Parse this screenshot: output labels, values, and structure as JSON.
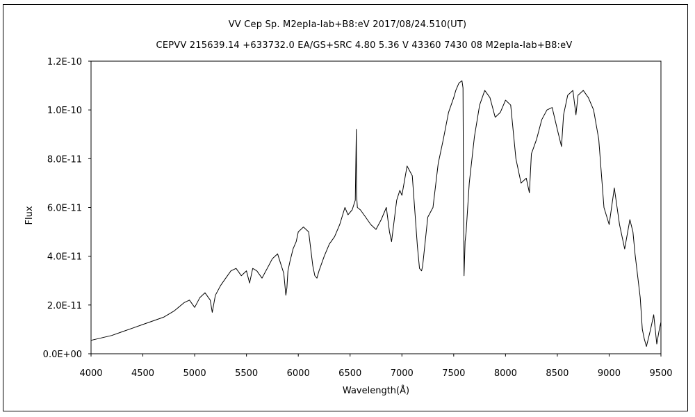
{
  "chart_data": {
    "type": "line",
    "title": "VV Cep     Sp. M2epIa-Iab+B8:eV     2017/08/24.510(UT)",
    "subtitle": "CEPVV 215639.14 +633732.0 EA/GS+SRC 4.80 5.36 V 43360 7430 08 M2epIa-Iab+B8:eV",
    "xlabel": "Wavelength(Å)",
    "ylabel": "Flux",
    "xlim": [
      4000,
      9500
    ],
    "ylim": [
      0,
      1.2e-10
    ],
    "x_ticks": [
      "4000",
      "4500",
      "5000",
      "5500",
      "6000",
      "6500",
      "7000",
      "7500",
      "8000",
      "8500",
      "9000",
      "9500"
    ],
    "y_ticks": [
      "0.0E+00",
      "2.0E-11",
      "4.0E-11",
      "6.0E-11",
      "8.0E-11",
      "1.0E-10",
      "1.2E-10"
    ],
    "grid": false,
    "series": [
      {
        "color": "#000000",
        "x": [
          4000,
          4100,
          4200,
          4300,
          4400,
          4500,
          4600,
          4700,
          4800,
          4900,
          4950,
          5000,
          5050,
          5100,
          5150,
          5170,
          5200,
          5250,
          5300,
          5350,
          5400,
          5450,
          5500,
          5530,
          5560,
          5600,
          5650,
          5700,
          5750,
          5800,
          5830,
          5860,
          5880,
          5890,
          5900,
          5920,
          5950,
          5980,
          6000,
          6050,
          6100,
          6140,
          6160,
          6180,
          6200,
          6250,
          6300,
          6350,
          6400,
          6450,
          6480,
          6520,
          6550,
          6560,
          6563,
          6570,
          6600,
          6650,
          6700,
          6750,
          6800,
          6850,
          6880,
          6900,
          6950,
          6980,
          7000,
          7050,
          7100,
          7150,
          7170,
          7190,
          7200,
          7210,
          7250,
          7300,
          7350,
          7400,
          7450,
          7500,
          7520,
          7550,
          7580,
          7590,
          7595,
          7600,
          7610,
          7620,
          7650,
          7700,
          7750,
          7800,
          7850,
          7900,
          7950,
          8000,
          8050,
          8100,
          8150,
          8200,
          8230,
          8250,
          8300,
          8350,
          8400,
          8450,
          8500,
          8540,
          8560,
          8600,
          8650,
          8680,
          8700,
          8750,
          8800,
          8850,
          8900,
          8950,
          9000,
          9050,
          9100,
          9150,
          9200,
          9230,
          9250,
          9300,
          9320,
          9340,
          9360,
          9400,
          9430,
          9460,
          9480,
          9500
        ],
        "y": [
          5.5e-12,
          6.5e-12,
          7.5e-12,
          9e-12,
          1.05e-11,
          1.2e-11,
          1.35e-11,
          1.5e-11,
          1.75e-11,
          2.1e-11,
          2.2e-11,
          1.9e-11,
          2.3e-11,
          2.5e-11,
          2.2e-11,
          1.7e-11,
          2.4e-11,
          2.8e-11,
          3.1e-11,
          3.4e-11,
          3.5e-11,
          3.2e-11,
          3.4e-11,
          2.9e-11,
          3.5e-11,
          3.4e-11,
          3.1e-11,
          3.5e-11,
          3.9e-11,
          4.1e-11,
          3.7e-11,
          3.3e-11,
          2.4e-11,
          2.7e-11,
          3.4e-11,
          3.8e-11,
          4.3e-11,
          4.6e-11,
          5e-11,
          5.2e-11,
          5e-11,
          3.6e-11,
          3.2e-11,
          3.1e-11,
          3.4e-11,
          4e-11,
          4.5e-11,
          4.8e-11,
          5.3e-11,
          6e-11,
          5.7e-11,
          5.9e-11,
          6.3e-11,
          9.2e-11,
          6.5e-11,
          6e-11,
          5.9e-11,
          5.6e-11,
          5.3e-11,
          5.1e-11,
          5.5e-11,
          6e-11,
          5e-11,
          4.6e-11,
          6.3e-11,
          6.7e-11,
          6.5e-11,
          7.7e-11,
          7.3e-11,
          4.4e-11,
          3.5e-11,
          3.4e-11,
          3.6e-11,
          4e-11,
          5.6e-11,
          6e-11,
          7.8e-11,
          8.8e-11,
          9.9e-11,
          1.05e-10,
          1.08e-10,
          1.11e-10,
          1.12e-10,
          1.09e-10,
          6e-11,
          3.2e-11,
          4.6e-11,
          5e-11,
          7e-11,
          8.9e-11,
          1.02e-10,
          1.08e-10,
          1.05e-10,
          9.7e-11,
          9.9e-11,
          1.04e-10,
          1.02e-10,
          8e-11,
          7e-11,
          7.2e-11,
          6.6e-11,
          8.2e-11,
          8.8e-11,
          9.6e-11,
          1e-10,
          1.01e-10,
          9.2e-11,
          8.5e-11,
          9.8e-11,
          1.06e-10,
          1.08e-10,
          9.8e-11,
          1.06e-10,
          1.08e-10,
          1.05e-10,
          1e-10,
          8.8e-11,
          6e-11,
          5.3e-11,
          6.8e-11,
          5.3e-11,
          4.3e-11,
          5.5e-11,
          5e-11,
          4.1e-11,
          2.3e-11,
          1e-11,
          6e-12,
          3e-12,
          1e-11,
          1.6e-11,
          4e-12,
          9e-12,
          1.3e-11
        ]
      }
    ]
  }
}
